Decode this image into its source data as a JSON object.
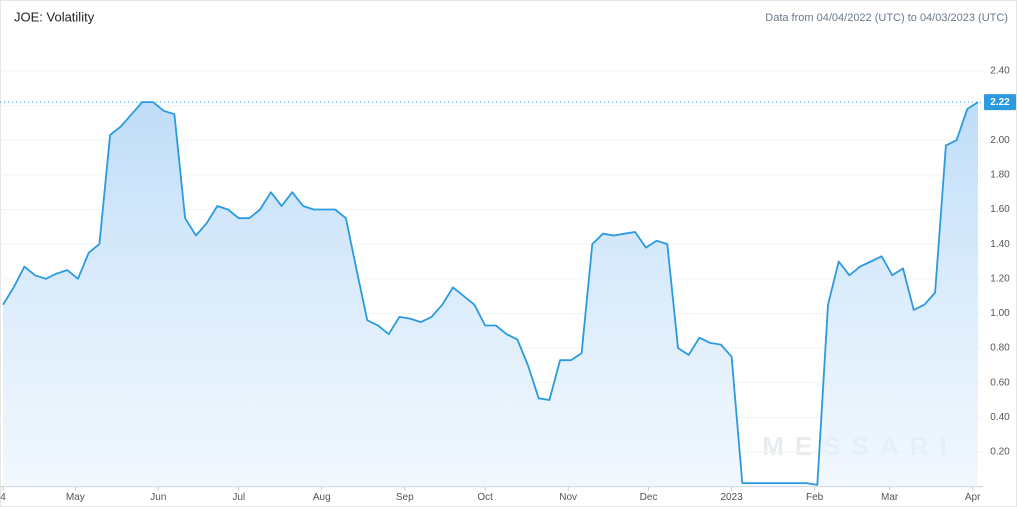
{
  "chart_data": {
    "type": "line",
    "title": "JOE: Volatility",
    "subtitle": "Data from 04/04/2022 (UTC) to 04/03/2023 (UTC)",
    "watermark": "MESSARI",
    "series": [
      {
        "name": "JOE: Volatility",
        "color": "#2b9ae0",
        "values": [
          1.05,
          1.15,
          1.27,
          1.22,
          1.2,
          1.23,
          1.25,
          1.2,
          1.35,
          1.4,
          2.03,
          2.08,
          2.15,
          2.22,
          2.22,
          2.17,
          2.15,
          1.55,
          1.45,
          1.52,
          1.62,
          1.6,
          1.55,
          1.55,
          1.6,
          1.7,
          1.62,
          1.7,
          1.62,
          1.6,
          1.6,
          1.6,
          1.55,
          1.25,
          0.96,
          0.93,
          0.88,
          0.98,
          0.97,
          0.95,
          0.98,
          1.05,
          1.15,
          1.1,
          1.05,
          0.93,
          0.93,
          0.88,
          0.85,
          0.7,
          0.51,
          0.5,
          0.73,
          0.73,
          0.77,
          1.4,
          1.46,
          1.45,
          1.46,
          1.47,
          1.38,
          1.42,
          1.4,
          0.8,
          0.76,
          0.86,
          0.83,
          0.82,
          0.75,
          0.02,
          0.02,
          0.02,
          0.02,
          0.02,
          0.02,
          0.02,
          0.01,
          1.05,
          1.3,
          1.22,
          1.27,
          1.3,
          1.33,
          1.22,
          1.26,
          1.02,
          1.05,
          1.12,
          1.97,
          2.0,
          2.18,
          2.22
        ]
      }
    ],
    "xlim": [
      0,
      91
    ],
    "xticks": [
      {
        "value": 0,
        "label": "4"
      },
      {
        "value": 6.75,
        "label": "May"
      },
      {
        "value": 14.5,
        "label": "Jun"
      },
      {
        "value": 22,
        "label": "Jul"
      },
      {
        "value": 29.75,
        "label": "Aug"
      },
      {
        "value": 37.5,
        "label": "Sep"
      },
      {
        "value": 45,
        "label": "Oct"
      },
      {
        "value": 52.75,
        "label": "Nov"
      },
      {
        "value": 60.25,
        "label": "Dec"
      },
      {
        "value": 68,
        "label": "2023"
      },
      {
        "value": 75.75,
        "label": "Feb"
      },
      {
        "value": 82.75,
        "label": "Mar"
      },
      {
        "value": 90.5,
        "label": "Apr"
      }
    ],
    "ylim": [
      0,
      2.6
    ],
    "yticks": [
      {
        "value": 0.2,
        "label": "0.20"
      },
      {
        "value": 0.4,
        "label": "0.40"
      },
      {
        "value": 0.6,
        "label": "0.60"
      },
      {
        "value": 0.8,
        "label": "0.80"
      },
      {
        "value": 1.0,
        "label": "1.00"
      },
      {
        "value": 1.2,
        "label": "1.20"
      },
      {
        "value": 1.4,
        "label": "1.40"
      },
      {
        "value": 1.6,
        "label": "1.60"
      },
      {
        "value": 1.8,
        "label": "1.80"
      },
      {
        "value": 2.0,
        "label": "2.00"
      },
      {
        "value": 2.2,
        "label": "2.20"
      },
      {
        "value": 2.4,
        "label": "2.40"
      }
    ],
    "grid": true
  }
}
